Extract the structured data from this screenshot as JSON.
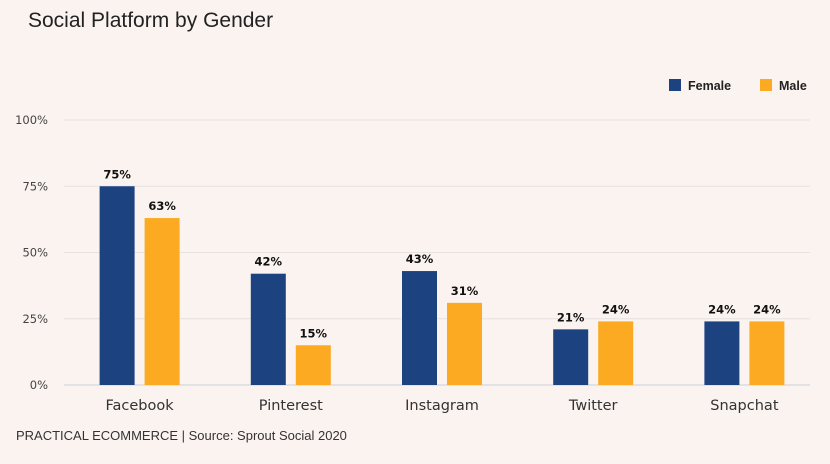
{
  "chart_data": {
    "type": "bar",
    "title": "Social Platform by Gender",
    "categories": [
      "Facebook",
      "Pinterest",
      "Instagram",
      "Twitter",
      "Snapchat"
    ],
    "series": [
      {
        "name": "Female",
        "values": [
          75,
          42,
          43,
          21,
          24
        ],
        "color": "#1c4380"
      },
      {
        "name": "Male",
        "values": [
          63,
          15,
          31,
          24,
          24
        ],
        "color": "#fbaa22"
      }
    ],
    "ylim": [
      0,
      100
    ],
    "yticks": [
      0,
      25,
      50,
      75,
      100
    ],
    "tick_format": "{v}%",
    "label_format": "{v}%",
    "grid": true,
    "legend": "top-right"
  },
  "footer": "PRACTICAL ECOMMERCE | Source: Sprout Social 2020"
}
